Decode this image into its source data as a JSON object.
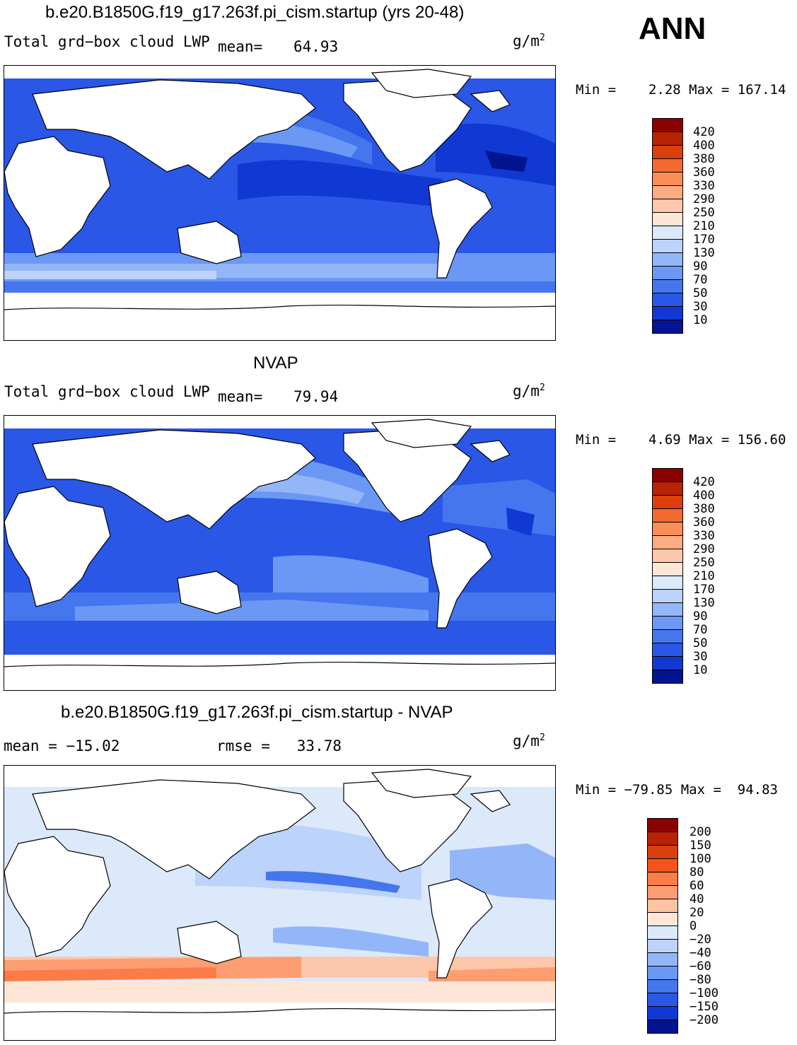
{
  "season": "ANN",
  "units": "g/m",
  "units_exp": "2",
  "panels": [
    {
      "title": "b.e20.B1850G.f19_g17.263f.pi_cism.startup (yrs 20-48)",
      "left_label": "Total grd−box cloud LWP",
      "stat_label": "mean=",
      "stat_value": "64.93",
      "min_max": "Min =    2.28 Max = 167.14",
      "colorbar": {
        "labels": [
          "420",
          "400",
          "380",
          "360",
          "330",
          "290",
          "250",
          "210",
          "170",
          "130",
          "90",
          "70",
          "50",
          "30",
          "10"
        ],
        "colors": [
          "#8b0000",
          "#b82205",
          "#d9400b",
          "#f26a2f",
          "#fb8e58",
          "#fcab83",
          "#fcc7aa",
          "#fde6d6",
          "#dce9fb",
          "#bcd3fb",
          "#93b6f8",
          "#6b98f5",
          "#4576ee",
          "#2a57e6",
          "#1238d3",
          "#02148f"
        ]
      }
    },
    {
      "title": "NVAP",
      "left_label": "Total grd−box cloud LWP",
      "stat_label": "mean=",
      "stat_value": "79.94",
      "min_max": "Min =    4.69 Max = 156.60",
      "colorbar": {
        "labels": [
          "420",
          "400",
          "380",
          "360",
          "330",
          "290",
          "250",
          "210",
          "170",
          "130",
          "90",
          "70",
          "50",
          "30",
          "10"
        ],
        "colors": [
          "#8b0000",
          "#b82205",
          "#d9400b",
          "#f26a2f",
          "#fb8e58",
          "#fcab83",
          "#fcc7aa",
          "#fde6d6",
          "#dce9fb",
          "#bcd3fb",
          "#93b6f8",
          "#6b98f5",
          "#4576ee",
          "#2a57e6",
          "#1238d3",
          "#02148f"
        ]
      }
    },
    {
      "title": "b.e20.B1850G.f19_g17.263f.pi_cism.startup - NVAP",
      "mean_text": "mean = −15.02",
      "rmse_text": "rmse =   33.78",
      "min_max": "Min = −79.85 Max =  94.83",
      "colorbar": {
        "labels": [
          "200",
          "150",
          "100",
          "80",
          "60",
          "40",
          "20",
          "0",
          "−20",
          "−40",
          "−60",
          "−80",
          "−100",
          "−150",
          "−200"
        ],
        "colors": [
          "#8b0000",
          "#b82205",
          "#d9400b",
          "#f5531b",
          "#fb7c47",
          "#fc9e72",
          "#fcc3a3",
          "#fde6d6",
          "#dce9fb",
          "#bcd3fb",
          "#93b6f8",
          "#6b98f5",
          "#4576ee",
          "#2a57e6",
          "#1238d3",
          "#02148f"
        ]
      }
    }
  ]
}
